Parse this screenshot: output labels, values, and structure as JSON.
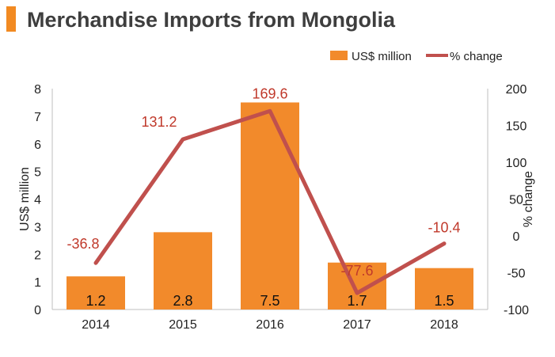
{
  "title": "Merchandise Imports from Mongolia",
  "chart_data": {
    "type": "bar+line",
    "title": "Merchandise Imports from Mongolia",
    "categories": [
      "2014",
      "2015",
      "2016",
      "2017",
      "2018"
    ],
    "series": [
      {
        "name": "US$ million",
        "type": "bar",
        "axis": "left",
        "values": [
          1.2,
          2.8,
          7.5,
          1.7,
          1.5
        ],
        "labels": [
          "1.2",
          "2.8",
          "7.5",
          "1.7",
          "1.5"
        ],
        "color": "#f28a2b"
      },
      {
        "name": "% change",
        "type": "line",
        "axis": "right",
        "values": [
          -36.8,
          131.2,
          169.6,
          -77.6,
          -10.4
        ],
        "labels": [
          "-36.8",
          "131.2",
          "169.6",
          "-77.6",
          "-10.4"
        ],
        "color": "#c0504d"
      }
    ],
    "ylabel": "US$ million",
    "y2label": "% change",
    "ylim": [
      0,
      8
    ],
    "yticks": [
      0,
      1,
      2,
      3,
      4,
      5,
      6,
      7,
      8
    ],
    "y2lim": [
      -100,
      200
    ],
    "y2ticks": [
      -100,
      -50,
      0,
      50,
      100,
      150,
      200
    ],
    "legend_position": "top-right",
    "label_color": "#c0392b"
  }
}
